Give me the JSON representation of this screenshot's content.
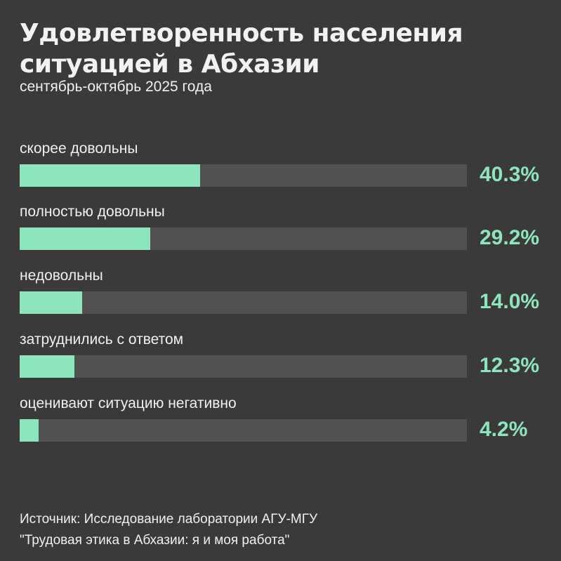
{
  "header": {
    "title_line1": "Удовлетворенность населения",
    "title_line2": "ситуацией в Абхазии",
    "subtitle": "сентябрь-октябрь 2025 года"
  },
  "bars": [
    {
      "label": "скорее довольны",
      "value": 40.3,
      "display": "40.3%"
    },
    {
      "label": "полностью довольны",
      "value": 29.2,
      "display": "29.2%"
    },
    {
      "label": "недовольны",
      "value": 14.0,
      "display": "14.0%"
    },
    {
      "label": "затруднились с ответом",
      "value": 12.3,
      "display": "12.3%"
    },
    {
      "label": "оценивают ситуацию негативно",
      "value": 4.2,
      "display": "4.2%"
    }
  ],
  "footer": {
    "source_line1": "Источник: Исследование лаборатории АГУ-МГУ",
    "source_line2": "\"Трудовая этика в Абхазии: я и моя работа\""
  },
  "colors": {
    "background": "#3a3a3a",
    "track": "#515151",
    "accent": "#8de5bd"
  },
  "chart_data": {
    "type": "bar",
    "orientation": "horizontal",
    "title": "Удовлетворенность населения ситуацией в Абхазии",
    "subtitle": "сентябрь-октябрь 2025 года",
    "categories": [
      "скорее довольны",
      "полностью довольны",
      "недовольны",
      "затруднились с ответом",
      "оценивают ситуацию негативно"
    ],
    "values": [
      40.3,
      29.2,
      14.0,
      12.3,
      4.2
    ],
    "unit": "%",
    "xlim": [
      0,
      100
    ],
    "grid": false,
    "legend": null,
    "source": "Источник: Исследование лаборатории АГУ-МГУ \"Трудовая этика в Абхазии: я и моя работа\""
  }
}
